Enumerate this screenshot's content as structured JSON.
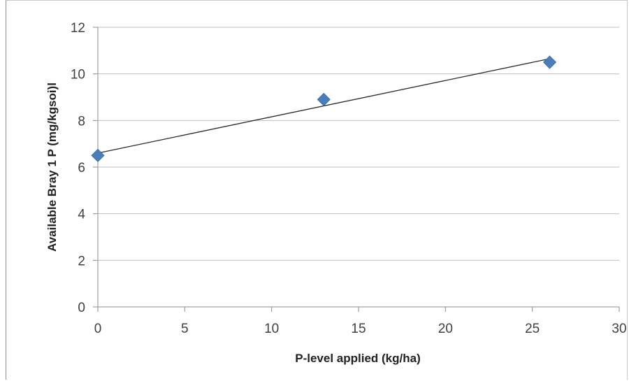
{
  "colors": {
    "marker": "#4a7ebb",
    "trendline": "#2a2a2a",
    "gridline": "#c0c0c0",
    "axis": "#8c8c8c"
  },
  "chart_data": {
    "type": "scatter",
    "title": "",
    "xlabel": "P-level applied (kg/ha)",
    "ylabel": "Available Bray 1 P  (mg/kgsoi)l",
    "xlim": [
      0,
      30
    ],
    "ylim": [
      0,
      12
    ],
    "xticks": [
      0,
      5,
      10,
      15,
      20,
      25,
      30
    ],
    "yticks": [
      0,
      2,
      4,
      6,
      8,
      10,
      12
    ],
    "grid": "horizontal",
    "legend": "none",
    "marker": "diamond",
    "series": [
      {
        "x": [
          0,
          13,
          26
        ],
        "y": [
          6.5,
          8.9,
          10.5
        ]
      }
    ],
    "trendline": {
      "type": "linear",
      "x": [
        0,
        26
      ],
      "y": [
        6.6,
        10.65
      ]
    }
  }
}
